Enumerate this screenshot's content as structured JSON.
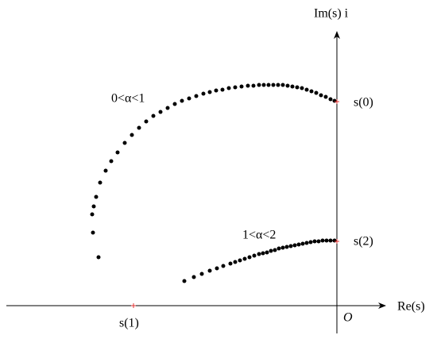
{
  "chart_data": {
    "type": "scatter",
    "x_label": "Re(s)",
    "y_label": "Im(s) i",
    "origin_label": "O",
    "xlim": [
      -416,
      61
    ],
    "ylim": [
      -35,
      345
    ],
    "series": [
      {
        "name": "0<α<1",
        "color": "#000000",
        "x": [
          -3,
          -8,
          -14,
          -20,
          -26,
          -32,
          -38,
          -44,
          -50,
          -56,
          -62,
          -68,
          -74,
          -80,
          -86,
          -92,
          -98,
          -105,
          -112,
          -120,
          -128,
          -136,
          -144,
          -152,
          -160,
          -168,
          -177,
          -186,
          -195,
          -204,
          -213,
          -222,
          -231,
          -240,
          -249,
          -258,
          -267,
          -276,
          -284,
          -291,
          -298,
          -303,
          -306,
          -308,
          -307,
          -300
        ],
        "values": [
          258,
          260,
          263,
          265,
          268,
          270,
          272,
          274,
          275,
          276,
          277,
          278,
          278,
          278,
          278,
          278,
          278,
          277,
          277,
          276,
          275,
          274,
          272,
          271,
          269,
          267,
          264,
          261,
          258,
          254,
          249,
          244,
          239,
          232,
          224,
          215,
          205,
          193,
          182,
          170,
          155,
          137,
          125,
          115,
          92,
          61
        ]
      },
      {
        "name": "1<α<2",
        "color": "#000000",
        "x": [
          -3,
          -8,
          -13,
          -18,
          -23,
          -28,
          -33,
          -38,
          -43,
          -48,
          -53,
          -58,
          -63,
          -68,
          -73,
          -78,
          -83,
          -88,
          -93,
          -98,
          -104,
          -110,
          -116,
          -122,
          -128,
          -134,
          -143,
          -151,
          -160,
          -170,
          -180,
          -192
        ],
        "values": [
          82,
          82,
          82,
          82,
          81,
          81,
          80,
          79,
          78,
          77,
          76,
          75,
          74,
          73,
          72,
          70,
          69,
          67,
          66,
          65,
          63,
          61,
          59,
          57,
          55,
          53,
          50,
          47,
          44,
          40,
          36,
          31
        ]
      }
    ],
    "markers": [
      {
        "label": "s(0)",
        "x": 0,
        "y": 257,
        "color": "#e03030"
      },
      {
        "label": "s(2)",
        "x": 0,
        "y": 81,
        "color": "#e03030"
      },
      {
        "label": "s(1)",
        "x": -256,
        "y": 0,
        "color": "#e03030"
      }
    ]
  }
}
